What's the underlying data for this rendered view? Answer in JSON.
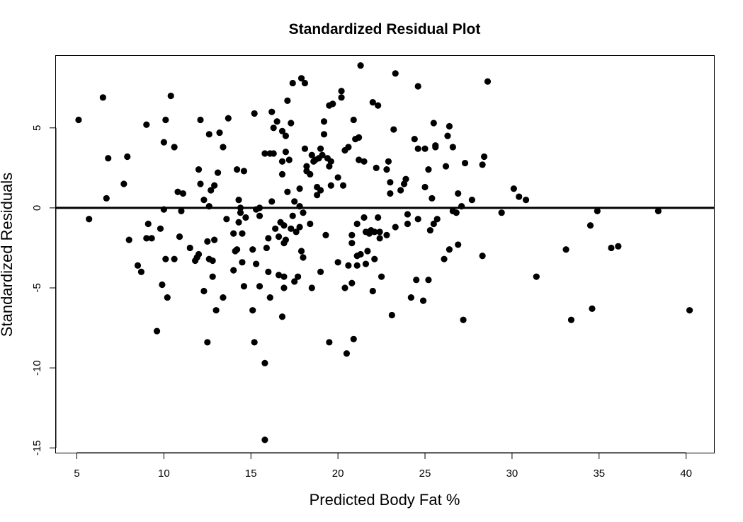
{
  "chart_data": {
    "type": "scatter",
    "title": "Standardized Residual Plot",
    "xlabel": "Predicted Body Fat %",
    "ylabel": "Standardized Residuals",
    "xlim": [
      3.8,
      41.6
    ],
    "ylim": [
      -15.3,
      9.5
    ],
    "xticks": [
      5,
      10,
      15,
      20,
      25,
      30,
      35,
      40
    ],
    "yticks": [
      -15,
      -10,
      -5,
      0,
      5
    ],
    "reference_line_y": 0,
    "grid": false,
    "legend": "none",
    "point_color": "#000000",
    "points": [
      [
        5.1,
        5.5
      ],
      [
        5.7,
        -0.7
      ],
      [
        6.5,
        6.9
      ],
      [
        6.7,
        0.6
      ],
      [
        6.8,
        3.1
      ],
      [
        7.7,
        1.5
      ],
      [
        7.9,
        3.2
      ],
      [
        8.0,
        -2.0
      ],
      [
        8.5,
        -3.6
      ],
      [
        8.7,
        -4.0
      ],
      [
        9.0,
        5.2
      ],
      [
        9.0,
        -1.9
      ],
      [
        9.1,
        -1.0
      ],
      [
        9.3,
        -1.9
      ],
      [
        9.6,
        -7.7
      ],
      [
        9.8,
        -1.3
      ],
      [
        9.9,
        -4.8
      ],
      [
        10.0,
        4.1
      ],
      [
        10.0,
        -0.1
      ],
      [
        10.1,
        -3.2
      ],
      [
        10.1,
        5.5
      ],
      [
        10.2,
        -5.6
      ],
      [
        10.4,
        7.0
      ],
      [
        10.6,
        -3.2
      ],
      [
        10.6,
        3.8
      ],
      [
        10.8,
        1.0
      ],
      [
        10.9,
        -1.8
      ],
      [
        11.0,
        -0.2
      ],
      [
        11.1,
        0.9
      ],
      [
        11.5,
        -2.5
      ],
      [
        11.8,
        -3.3
      ],
      [
        11.9,
        -3.1
      ],
      [
        12.0,
        2.4
      ],
      [
        12.0,
        -2.9
      ],
      [
        12.1,
        5.5
      ],
      [
        12.1,
        1.5
      ],
      [
        12.3,
        0.5
      ],
      [
        12.3,
        -5.2
      ],
      [
        12.5,
        -2.1
      ],
      [
        12.5,
        -8.4
      ],
      [
        12.6,
        4.6
      ],
      [
        12.6,
        0.1
      ],
      [
        12.6,
        -3.2
      ],
      [
        12.7,
        1.1
      ],
      [
        12.8,
        -4.3
      ],
      [
        12.8,
        -3.3
      ],
      [
        12.9,
        1.4
      ],
      [
        12.9,
        -2.0
      ],
      [
        13.0,
        -6.4
      ],
      [
        13.1,
        2.2
      ],
      [
        13.2,
        4.7
      ],
      [
        13.4,
        3.8
      ],
      [
        13.4,
        -5.6
      ],
      [
        13.6,
        -0.7
      ],
      [
        13.7,
        5.6
      ],
      [
        14.0,
        -1.6
      ],
      [
        14.0,
        -3.9
      ],
      [
        14.1,
        -2.7
      ],
      [
        14.2,
        -2.6
      ],
      [
        14.2,
        2.4
      ],
      [
        14.3,
        -0.9
      ],
      [
        14.3,
        0.5
      ],
      [
        14.4,
        0.0
      ],
      [
        14.4,
        -0.3
      ],
      [
        14.5,
        -1.6
      ],
      [
        14.5,
        -3.4
      ],
      [
        14.6,
        -4.9
      ],
      [
        14.6,
        2.3
      ],
      [
        14.7,
        -0.6
      ],
      [
        15.1,
        -6.4
      ],
      [
        15.1,
        -2.6
      ],
      [
        15.2,
        -8.4
      ],
      [
        15.2,
        5.9
      ],
      [
        15.3,
        -0.1
      ],
      [
        15.3,
        -3.5
      ],
      [
        15.5,
        0.0
      ],
      [
        15.5,
        -0.5
      ],
      [
        15.5,
        -4.9
      ],
      [
        15.8,
        3.4
      ],
      [
        15.8,
        -9.7
      ],
      [
        15.8,
        -14.5
      ],
      [
        15.9,
        -2.5
      ],
      [
        16.0,
        -1.9
      ],
      [
        16.0,
        -4.0
      ],
      [
        16.1,
        3.4
      ],
      [
        16.1,
        -5.6
      ],
      [
        16.2,
        6.0
      ],
      [
        16.2,
        0.4
      ],
      [
        16.3,
        3.4
      ],
      [
        16.3,
        5.0
      ],
      [
        16.4,
        -1.3
      ],
      [
        16.5,
        5.4
      ],
      [
        16.6,
        -1.8
      ],
      [
        16.6,
        -4.2
      ],
      [
        16.7,
        -0.9
      ],
      [
        16.8,
        2.9
      ],
      [
        16.8,
        4.8
      ],
      [
        16.8,
        2.1
      ],
      [
        16.8,
        -6.8
      ],
      [
        16.9,
        -4.3
      ],
      [
        16.9,
        -5.0
      ],
      [
        16.9,
        -1.1
      ],
      [
        16.9,
        -2.2
      ],
      [
        17.0,
        4.5
      ],
      [
        17.0,
        3.5
      ],
      [
        17.0,
        -2.0
      ],
      [
        17.1,
        1.0
      ],
      [
        17.1,
        6.7
      ],
      [
        17.2,
        3.0
      ],
      [
        17.3,
        5.3
      ],
      [
        17.3,
        -1.3
      ],
      [
        17.4,
        7.8
      ],
      [
        17.4,
        -0.5
      ],
      [
        17.5,
        0.4
      ],
      [
        17.5,
        -4.6
      ],
      [
        17.6,
        -1.5
      ],
      [
        17.7,
        -4.3
      ],
      [
        17.8,
        1.2
      ],
      [
        17.8,
        -1.2
      ],
      [
        17.8,
        0.1
      ],
      [
        17.9,
        8.1
      ],
      [
        17.9,
        -2.7
      ],
      [
        18.0,
        -3.1
      ],
      [
        18.0,
        -0.3
      ],
      [
        18.1,
        7.8
      ],
      [
        18.1,
        3.7
      ],
      [
        18.2,
        2.3
      ],
      [
        18.2,
        2.6
      ],
      [
        18.4,
        2.1
      ],
      [
        18.4,
        -1.0
      ],
      [
        18.5,
        -5.0
      ],
      [
        18.5,
        3.3
      ],
      [
        18.6,
        2.9
      ],
      [
        18.7,
        3.0
      ],
      [
        18.8,
        1.3
      ],
      [
        18.8,
        0.8
      ],
      [
        18.9,
        3.1
      ],
      [
        19.0,
        3.7
      ],
      [
        19.0,
        1.1
      ],
      [
        19.0,
        -4.0
      ],
      [
        19.1,
        3.3
      ],
      [
        19.2,
        5.4
      ],
      [
        19.2,
        4.6
      ],
      [
        19.3,
        -1.7
      ],
      [
        19.4,
        3.1
      ],
      [
        19.5,
        6.4
      ],
      [
        19.5,
        -8.4
      ],
      [
        19.5,
        2.6
      ],
      [
        19.6,
        1.4
      ],
      [
        19.6,
        2.9
      ],
      [
        19.7,
        6.5
      ],
      [
        20.0,
        -3.4
      ],
      [
        20.0,
        1.9
      ],
      [
        20.2,
        6.9
      ],
      [
        20.2,
        7.3
      ],
      [
        20.3,
        1.4
      ],
      [
        20.4,
        -5.0
      ],
      [
        20.4,
        3.6
      ],
      [
        20.5,
        -9.1
      ],
      [
        20.6,
        -3.6
      ],
      [
        20.6,
        3.8
      ],
      [
        20.8,
        -1.7
      ],
      [
        20.8,
        -4.7
      ],
      [
        20.8,
        -2.2
      ],
      [
        20.9,
        5.5
      ],
      [
        20.9,
        -8.2
      ],
      [
        21.0,
        4.3
      ],
      [
        21.1,
        -1.0
      ],
      [
        21.1,
        -3.6
      ],
      [
        21.1,
        -3.0
      ],
      [
        21.2,
        4.4
      ],
      [
        21.2,
        3.0
      ],
      [
        21.3,
        8.9
      ],
      [
        21.3,
        -2.9
      ],
      [
        21.5,
        2.9
      ],
      [
        21.5,
        -0.6
      ],
      [
        21.6,
        -1.5
      ],
      [
        21.6,
        -3.5
      ],
      [
        21.7,
        -2.7
      ],
      [
        21.8,
        -1.6
      ],
      [
        21.9,
        -1.4
      ],
      [
        22.0,
        6.6
      ],
      [
        22.0,
        -5.2
      ],
      [
        22.1,
        -1.5
      ],
      [
        22.1,
        -3.2
      ],
      [
        22.2,
        2.5
      ],
      [
        22.3,
        -0.6
      ],
      [
        22.3,
        6.4
      ],
      [
        22.4,
        -1.5
      ],
      [
        22.4,
        -1.9
      ],
      [
        22.5,
        -4.3
      ],
      [
        22.8,
        2.4
      ],
      [
        22.8,
        -1.7
      ],
      [
        22.9,
        2.9
      ],
      [
        23.0,
        1.6
      ],
      [
        23.0,
        0.9
      ],
      [
        23.1,
        -6.7
      ],
      [
        23.2,
        4.9
      ],
      [
        23.3,
        8.4
      ],
      [
        23.3,
        -1.2
      ],
      [
        23.6,
        1.1
      ],
      [
        23.8,
        1.5
      ],
      [
        23.9,
        1.8
      ],
      [
        24.0,
        -0.4
      ],
      [
        24.0,
        -1.0
      ],
      [
        24.2,
        -5.6
      ],
      [
        24.4,
        4.3
      ],
      [
        24.5,
        -4.5
      ],
      [
        24.6,
        7.6
      ],
      [
        24.6,
        3.7
      ],
      [
        24.6,
        -0.7
      ],
      [
        24.9,
        -5.8
      ],
      [
        25.0,
        3.7
      ],
      [
        25.0,
        1.3
      ],
      [
        25.2,
        -4.5
      ],
      [
        25.2,
        2.4
      ],
      [
        25.3,
        -1.4
      ],
      [
        25.4,
        0.6
      ],
      [
        25.5,
        5.3
      ],
      [
        25.5,
        -1.0
      ],
      [
        25.6,
        3.8
      ],
      [
        25.6,
        3.9
      ],
      [
        25.7,
        -0.7
      ],
      [
        26.1,
        -3.2
      ],
      [
        26.2,
        2.6
      ],
      [
        26.3,
        4.5
      ],
      [
        26.4,
        -2.6
      ],
      [
        26.4,
        5.1
      ],
      [
        26.6,
        3.8
      ],
      [
        26.6,
        -0.2
      ],
      [
        26.8,
        -0.3
      ],
      [
        26.9,
        0.9
      ],
      [
        26.9,
        -2.3
      ],
      [
        27.1,
        0.1
      ],
      [
        27.2,
        -7.0
      ],
      [
        27.3,
        2.8
      ],
      [
        27.7,
        0.5
      ],
      [
        28.3,
        -3.0
      ],
      [
        28.3,
        2.7
      ],
      [
        28.4,
        3.2
      ],
      [
        28.6,
        7.9
      ],
      [
        29.4,
        -0.3
      ],
      [
        30.1,
        1.2
      ],
      [
        30.4,
        0.7
      ],
      [
        30.8,
        0.5
      ],
      [
        31.4,
        -4.3
      ],
      [
        33.1,
        -2.6
      ],
      [
        33.4,
        -7.0
      ],
      [
        34.5,
        -1.1
      ],
      [
        34.6,
        -6.3
      ],
      [
        34.9,
        -0.2
      ],
      [
        35.7,
        -2.5
      ],
      [
        36.1,
        -2.4
      ],
      [
        38.4,
        -0.2
      ],
      [
        40.2,
        -6.4
      ]
    ]
  }
}
